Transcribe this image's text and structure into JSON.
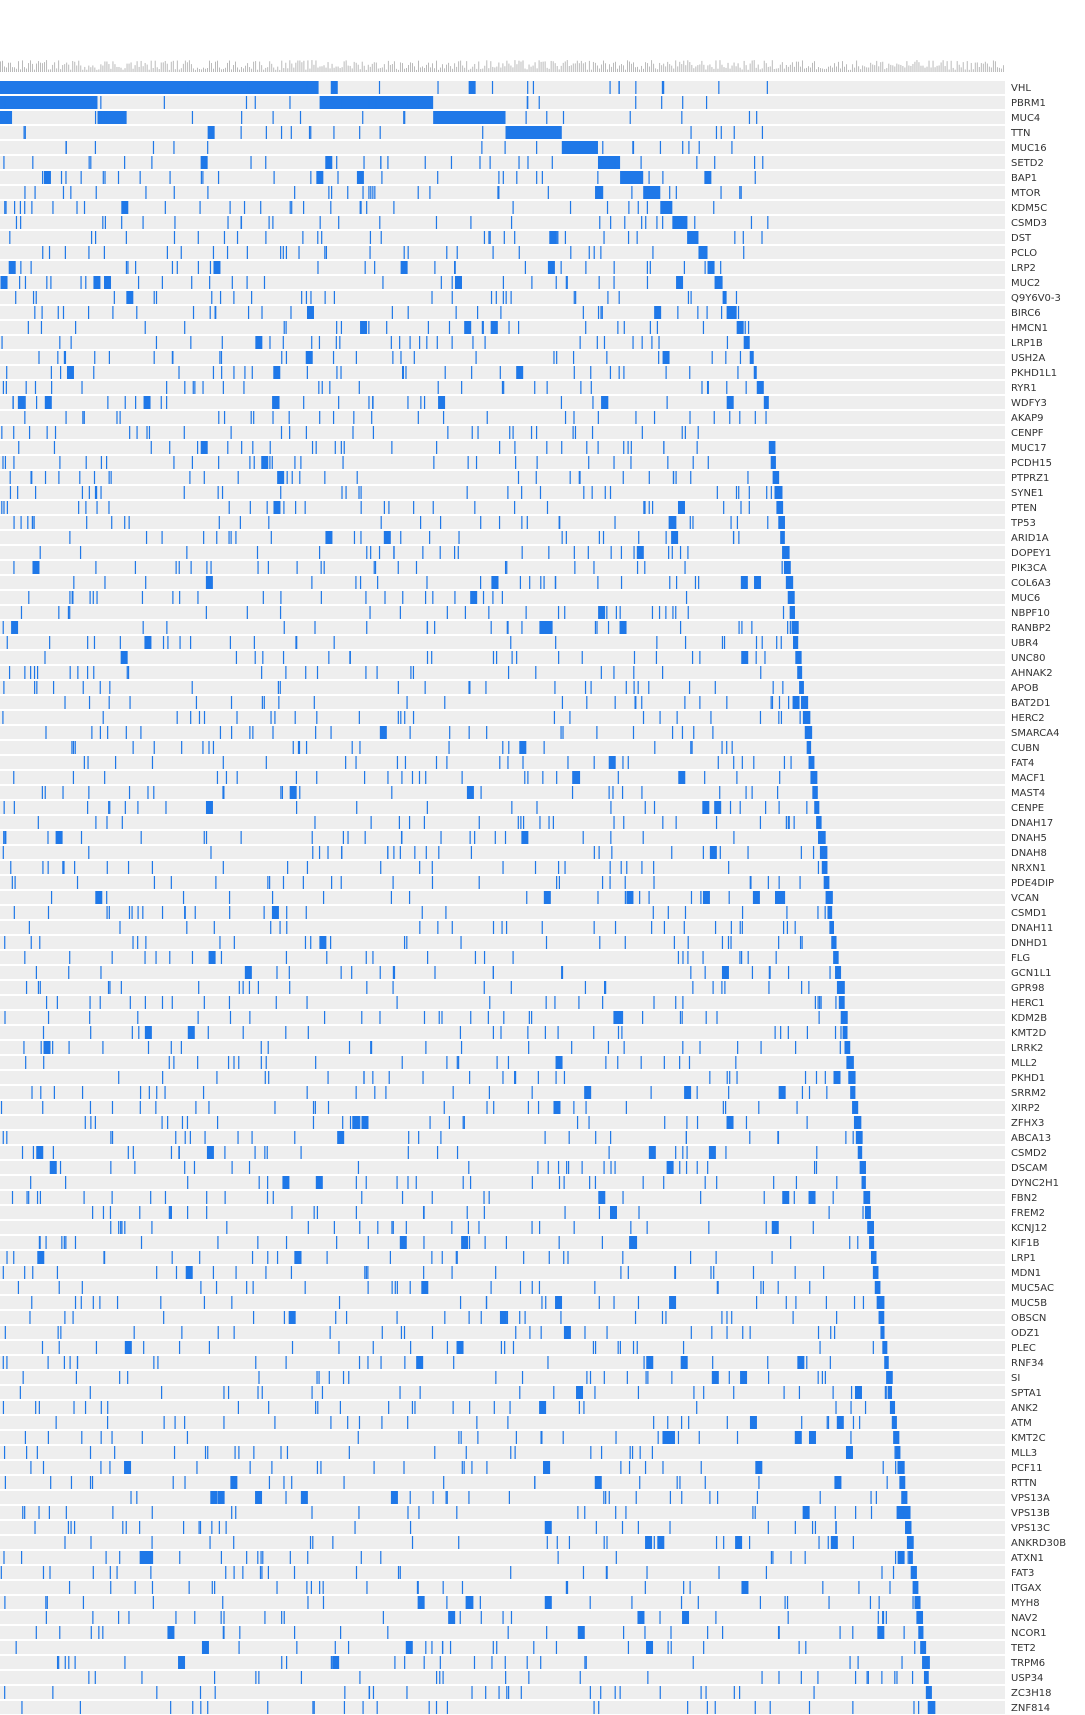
{
  "colors": {
    "row_background": "#eeeeee",
    "mutation": "#1f78e8",
    "label": "#333333",
    "top_track": "#aaaaaa"
  },
  "chart_data": {
    "type": "heatmap",
    "title": "",
    "xlabel": "",
    "ylabel": "",
    "sample_count": 1000,
    "genes": [
      "VHL",
      "PBRM1",
      "MUC4",
      "TTN",
      "MUC16",
      "SETD2",
      "BAP1",
      "MTOR",
      "KDM5C",
      "CSMD3",
      "DST",
      "PCLO",
      "LRP2",
      "MUC2",
      "Q9Y6V0-3",
      "BIRC6",
      "HMCN1",
      "LRP1B",
      "USH2A",
      "PKHD1L1",
      "RYR1",
      "WDFY3",
      "AKAP9",
      "CENPF",
      "MUC17",
      "PCDH15",
      "PTPRZ1",
      "SYNE1",
      "PTEN",
      "TP53",
      "ARID1A",
      "DOPEY1",
      "PIK3CA",
      "COL6A3",
      "MUC6",
      "NBPF10",
      "RANBP2",
      "UBR4",
      "UNC80",
      "AHNAK2",
      "APOB",
      "BAT2D1",
      "HERC2",
      "SMARCA4",
      "CUBN",
      "FAT4",
      "MACF1",
      "MAST4",
      "CENPE",
      "DNAH17",
      "DNAH5",
      "DNAH8",
      "NRXN1",
      "PDE4DIP",
      "VCAN",
      "CSMD1",
      "DNAH11",
      "DNHD1",
      "FLG",
      "GCN1L1",
      "GPR98",
      "HERC1",
      "KDM2B",
      "KMT2D",
      "LRRK2",
      "MLL2",
      "PKHD1",
      "SRRM2",
      "XIRP2",
      "ZFHX3",
      "ABCA13",
      "CSMD2",
      "DSCAM",
      "DYNC2H1",
      "FBN2",
      "FREM2",
      "KCNJ12",
      "KIF1B",
      "LRP1",
      "MDN1",
      "MUC5AC",
      "MUC5B",
      "OBSCN",
      "ODZ1",
      "PLEC",
      "RNF34",
      "SI",
      "SPTA1",
      "ANK2",
      "ATM",
      "KMT2C",
      "MLL3",
      "PCF11",
      "RTTN",
      "VPS13A",
      "VPS13B",
      "VPS13C",
      "ANKRD30B",
      "ATXN1",
      "FAT3",
      "ITGAX",
      "MYH8",
      "NAV2",
      "NCOR1",
      "TET2",
      "TRPM6",
      "USP34",
      "ZC3H18",
      "ZNF814"
    ],
    "waterfall_segments": [
      {
        "gene": "VHL",
        "start": 0,
        "end": 317
      },
      {
        "gene": "PBRM1",
        "start": 0,
        "end": 97
      },
      {
        "gene": "PBRM1",
        "start": 318,
        "end": 431
      },
      {
        "gene": "MUC4",
        "start": 0,
        "end": 12
      },
      {
        "gene": "MUC4",
        "start": 97,
        "end": 126
      },
      {
        "gene": "MUC4",
        "start": 431,
        "end": 503
      },
      {
        "gene": "TTN",
        "start": 503,
        "end": 559
      },
      {
        "gene": "MUC16",
        "start": 559,
        "end": 595
      },
      {
        "gene": "SETD2",
        "start": 595,
        "end": 617
      },
      {
        "gene": "BAP1",
        "start": 617,
        "end": 640
      },
      {
        "gene": "MTOR",
        "start": 640,
        "end": 657
      },
      {
        "gene": "KDM5C",
        "start": 657,
        "end": 669
      },
      {
        "gene": "CSMD3",
        "start": 669,
        "end": 684
      },
      {
        "gene": "DST",
        "start": 684,
        "end": 695
      },
      {
        "gene": "PCLO",
        "start": 695,
        "end": 704
      },
      {
        "gene": "LRP2",
        "start": 704,
        "end": 711
      },
      {
        "gene": "MUC2",
        "start": 711,
        "end": 719
      },
      {
        "gene": "Q9Y6V0-3",
        "start": 719,
        "end": 723
      },
      {
        "gene": "BIRC6",
        "start": 723,
        "end": 733
      },
      {
        "gene": "HMCN1",
        "start": 733,
        "end": 740
      },
      {
        "gene": "LRP1B",
        "start": 740,
        "end": 746
      },
      {
        "gene": "USH2A",
        "start": 746,
        "end": 750
      },
      {
        "gene": "PKHD1L1",
        "start": 750,
        "end": 753
      },
      {
        "gene": "RYR1",
        "start": 753,
        "end": 760
      },
      {
        "gene": "WDFY3",
        "start": 760,
        "end": 765
      }
    ]
  }
}
